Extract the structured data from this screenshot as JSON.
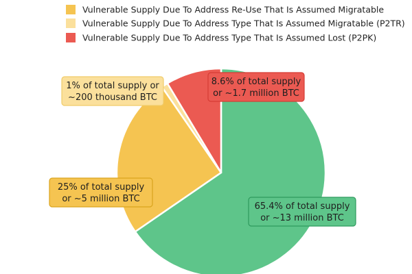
{
  "chart_data": {
    "type": "pie",
    "title": "",
    "legend_placement": "top-left",
    "legend": [
      {
        "label": "Vulnerable Supply Due To Address Re-Use That Is Assumed Migratable",
        "color": "#f5c451"
      },
      {
        "label": "Vulnerable Supply Due To Address Type That Is Assumed Migratable (P2TR)",
        "color": "#fbe09c"
      },
      {
        "label": "Vulnerable Supply Due To Address Type That Is Assumed Lost (P2PK)",
        "color": "#eb5a52"
      }
    ],
    "slices": [
      {
        "value": 65.4,
        "color": "#5ec58a",
        "callout": [
          "65.4% of total supply",
          "or ~13 million BTC"
        ]
      },
      {
        "value": 25,
        "color": "#f5c451",
        "callout": [
          "25% of total supply",
          "or ~5 million BTC"
        ]
      },
      {
        "value": 1,
        "color": "#fbe09c",
        "callout": [
          "1% of total supply or",
          "~200 thousand BTC"
        ]
      },
      {
        "value": 8.6,
        "color": "#eb5a52",
        "callout": [
          "8.6% of total supply",
          "or ~1.7 million BTC"
        ]
      }
    ]
  }
}
